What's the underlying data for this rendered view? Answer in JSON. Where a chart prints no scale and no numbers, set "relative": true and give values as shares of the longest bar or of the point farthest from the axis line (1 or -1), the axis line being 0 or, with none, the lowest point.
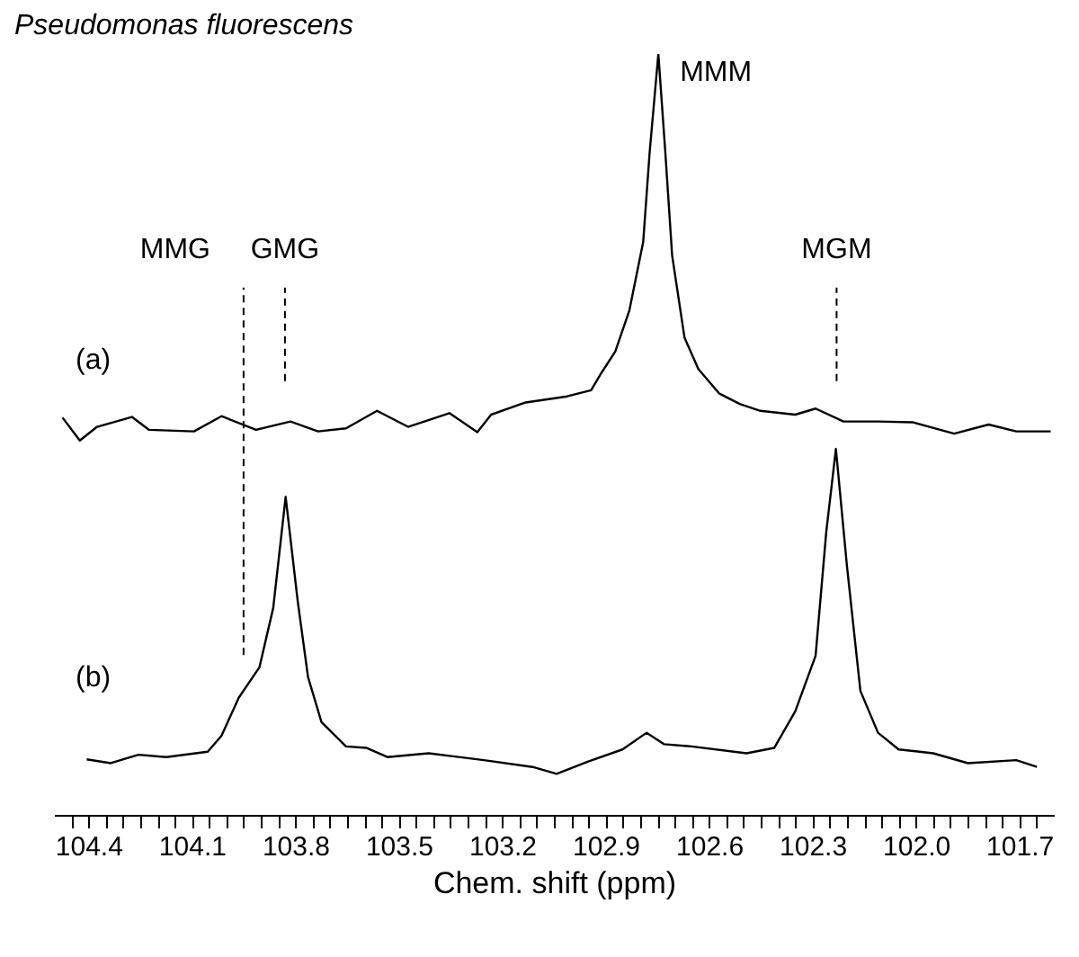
{
  "chart_data": {
    "type": "line",
    "title": "Pseudomonas fluorescens",
    "relative": true,
    "xlabel": "Chem. shift (ppm)",
    "xlim": [
      104.5,
      101.6
    ],
    "xticks": [
      {
        "value": 104.45,
        "label": null
      },
      104.4,
      {
        "value": 104.35,
        "label": null
      },
      {
        "value": 104.3,
        "label": null
      },
      {
        "value": 104.25,
        "label": null
      },
      {
        "value": 104.2,
        "label": null
      },
      {
        "value": 104.15,
        "label": null
      },
      104.1,
      {
        "value": 104.05,
        "label": null
      },
      {
        "value": 104.0,
        "label": null
      },
      {
        "value": 103.95,
        "label": null
      },
      {
        "value": 103.9,
        "label": null
      },
      {
        "value": 103.85,
        "label": null
      },
      103.8,
      {
        "value": 103.75,
        "label": null
      },
      {
        "value": 103.7,
        "label": null
      },
      {
        "value": 103.65,
        "label": null
      },
      {
        "value": 103.6,
        "label": null
      },
      {
        "value": 103.55,
        "label": null
      },
      103.5,
      {
        "value": 103.45,
        "label": null
      },
      {
        "value": 103.4,
        "label": null
      },
      {
        "value": 103.35,
        "label": null
      },
      {
        "value": 103.3,
        "label": null
      },
      {
        "value": 103.25,
        "label": null
      },
      103.2,
      {
        "value": 103.15,
        "label": null
      },
      {
        "value": 103.1,
        "label": null
      },
      {
        "value": 103.05,
        "label": null
      },
      {
        "value": 103.0,
        "label": null
      },
      {
        "value": 102.95,
        "label": null
      },
      102.9,
      {
        "value": 102.85,
        "label": null
      },
      {
        "value": 102.8,
        "label": null
      },
      {
        "value": 102.75,
        "label": null
      },
      {
        "value": 102.7,
        "label": null
      },
      {
        "value": 102.65,
        "label": null
      },
      102.6,
      {
        "value": 102.55,
        "label": null
      },
      {
        "value": 102.5,
        "label": null
      },
      {
        "value": 102.45,
        "label": null
      },
      {
        "value": 102.4,
        "label": null
      },
      {
        "value": 102.35,
        "label": null
      },
      102.3,
      {
        "value": 102.25,
        "label": null
      },
      {
        "value": 102.2,
        "label": null
      },
      {
        "value": 102.15,
        "label": null
      },
      {
        "value": 102.1,
        "label": null
      },
      {
        "value": 102.05,
        "label": null
      },
      {
        "value": 102.0,
        "label": "102.0"
      },
      {
        "value": 101.95,
        "label": null
      },
      {
        "value": 101.9,
        "label": null
      },
      {
        "value": 101.85,
        "label": null
      },
      {
        "value": 101.8,
        "label": null
      },
      {
        "value": 101.75,
        "label": null
      },
      101.7,
      {
        "value": 101.65,
        "label": null
      }
    ],
    "series": [
      {
        "color": "#000000",
        "x": [
          104.475,
          104.425,
          104.375,
          104.274,
          104.224,
          104.094,
          104.014,
          103.914,
          103.814,
          103.734,
          103.653,
          103.563,
          103.473,
          103.353,
          103.272,
          103.232,
          103.132,
          103.012,
          102.942,
          102.912,
          102.872,
          102.831,
          102.791,
          102.772,
          102.747,
          102.727,
          102.707,
          102.671,
          102.631,
          102.571,
          102.511,
          102.451,
          102.35,
          102.291,
          102.21,
          102.11,
          102.01,
          101.889,
          101.789,
          101.709,
          101.609
        ],
        "values": [
          0.522,
          0.492,
          0.51,
          0.523,
          0.506,
          0.504,
          0.524,
          0.506,
          0.517,
          0.504,
          0.508,
          0.531,
          0.51,
          0.528,
          0.503,
          0.526,
          0.542,
          0.55,
          0.558,
          0.581,
          0.609,
          0.663,
          0.753,
          0.872,
          1,
          0.872,
          0.735,
          0.627,
          0.586,
          0.554,
          0.54,
          0.531,
          0.526,
          0.534,
          0.517,
          0.517,
          0.516,
          0.501,
          0.513,
          0.504,
          0.504
        ]
      },
      {
        "color": "#000000",
        "x": [
          104.405,
          104.335,
          104.255,
          104.174,
          104.054,
          104.014,
          103.964,
          103.904,
          103.864,
          103.828,
          103.793,
          103.763,
          103.724,
          103.653,
          103.593,
          103.533,
          103.413,
          103.253,
          103.112,
          103.042,
          102.952,
          102.851,
          102.781,
          102.731,
          102.651,
          102.491,
          102.411,
          102.35,
          102.291,
          102.26,
          102.232,
          102.2,
          102.161,
          102.11,
          102.05,
          101.95,
          101.849,
          101.709,
          101.649
        ],
        "values": [
          0.073,
          0.068,
          0.079,
          0.076,
          0.083,
          0.104,
          0.154,
          0.194,
          0.272,
          0.418,
          0.281,
          0.181,
          0.122,
          0.09,
          0.088,
          0.076,
          0.081,
          0.072,
          0.063,
          0.054,
          0.07,
          0.086,
          0.108,
          0.093,
          0.09,
          0.081,
          0.088,
          0.136,
          0.209,
          0.372,
          0.481,
          0.327,
          0.163,
          0.108,
          0.086,
          0.081,
          0.068,
          0.072,
          0.063
        ]
      }
    ],
    "ref_lines": [
      {
        "axis": "x",
        "value": 103.95,
        "line_style": "dashed",
        "label": "MMG"
      },
      {
        "axis": "x",
        "value": 103.83,
        "line_style": "dashed",
        "label": "GMG"
      },
      {
        "axis": "x",
        "value": 102.23,
        "line_style": "dashed",
        "label": "MGM"
      }
    ],
    "annotations": [
      "(a)",
      "(b)",
      {
        "text": "MMM",
        "x": 102.747,
        "y": 1
      }
    ]
  }
}
